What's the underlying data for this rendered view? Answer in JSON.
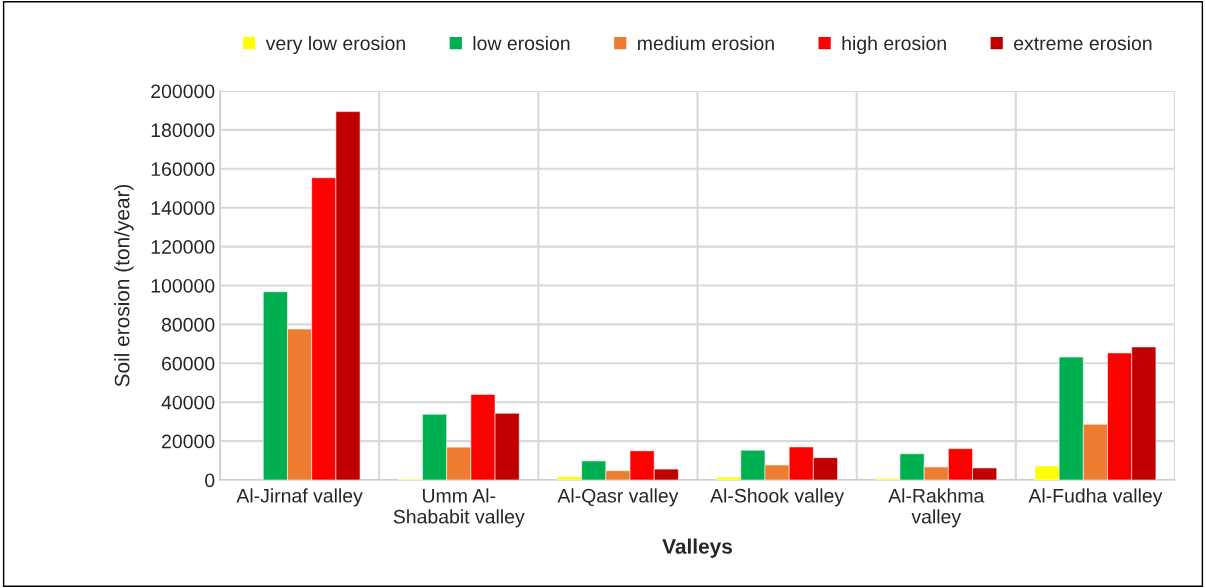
{
  "chart_data": {
    "type": "bar",
    "xlabel": "Valleys",
    "ylabel": "Soil erosion (ton/year)",
    "categories": [
      "Al-Jirnaf valley",
      "Umm Al-\nShababit valley",
      "Al-Qasr valley",
      "Al-Shook valley",
      "Al-Rakhma\nvalley",
      "Al-Fudha valley"
    ],
    "series": [
      {
        "name": "very low erosion",
        "color": "#ffff00",
        "values": [
          null,
          500,
          1700,
          1500,
          800,
          7200
        ]
      },
      {
        "name": "low erosion",
        "color": "#00b050",
        "values": [
          96800,
          33800,
          9800,
          15300,
          13500,
          63200
        ]
      },
      {
        "name": "medium erosion",
        "color": "#ed7d31",
        "values": [
          77600,
          16900,
          4800,
          7700,
          6700,
          28600
        ]
      },
      {
        "name": "high erosion",
        "color": "#ff0000",
        "values": [
          155400,
          44000,
          15000,
          17000,
          16100,
          65300
        ]
      },
      {
        "name": "extreme erosion",
        "color": "#c00000",
        "values": [
          189400,
          34300,
          5600,
          11500,
          6200,
          68400
        ]
      }
    ],
    "ylim": [
      0,
      200000
    ],
    "yticks": [
      0,
      20000,
      40000,
      60000,
      80000,
      100000,
      120000,
      140000,
      160000,
      180000,
      200000
    ],
    "grid": true,
    "legend": "top"
  }
}
